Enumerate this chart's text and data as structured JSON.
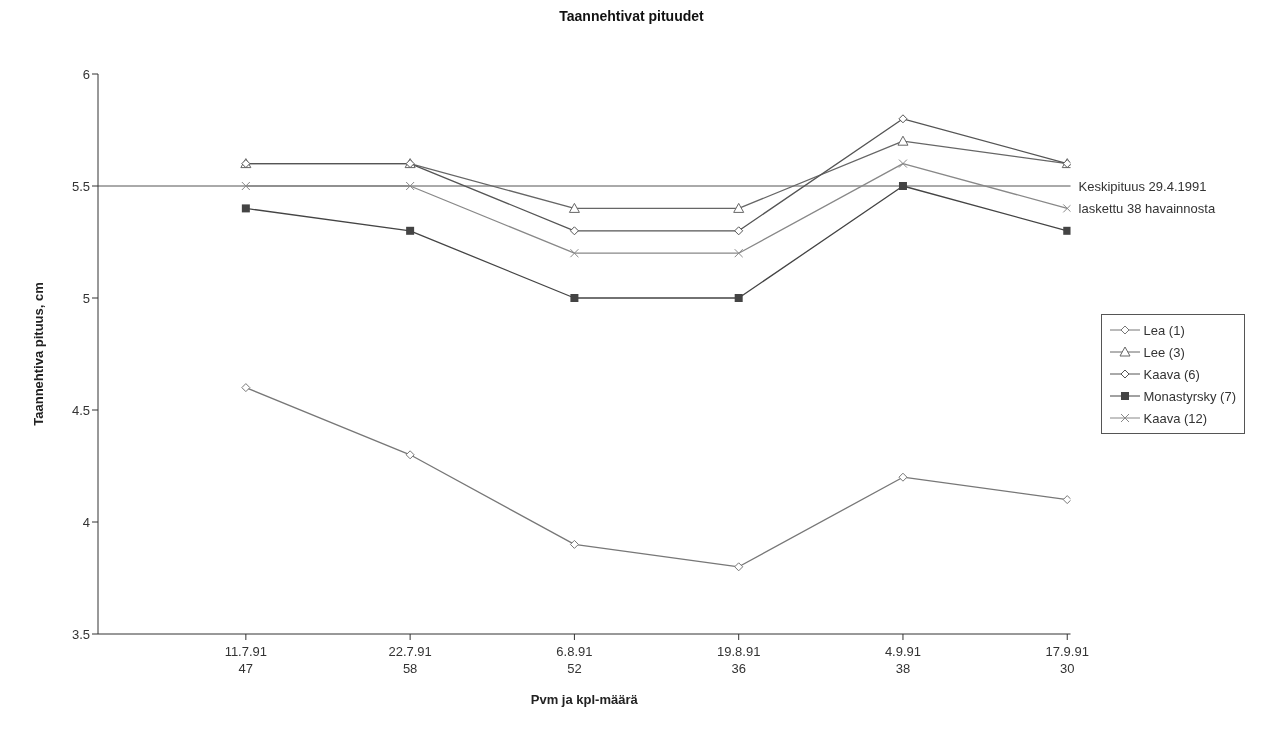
{
  "chart_data": {
    "type": "line",
    "title": "Taannehtivat pituudet",
    "xlabel": "Pvm ja kpl-määrä",
    "ylabel": "Taannehtiva pituus, cm",
    "categories": [
      "11.7.91\n47",
      "22.7.91\n58",
      "6.8.91\n52",
      "19.8.91\n36",
      "4.9.91\n38",
      "17.9.91\n30"
    ],
    "series": [
      {
        "name": "Lea (1)",
        "color": "#777777",
        "marker": "diamond",
        "values": [
          4.6,
          4.3,
          3.9,
          3.8,
          4.2,
          4.1
        ]
      },
      {
        "name": "Lee (3)",
        "color": "#666666",
        "marker": "triangle",
        "values": [
          5.6,
          5.6,
          5.4,
          5.4,
          5.7,
          5.6
        ]
      },
      {
        "name": "Kaava (6)",
        "color": "#555555",
        "marker": "diamond",
        "values": [
          5.6,
          5.6,
          5.3,
          5.3,
          5.8,
          5.6
        ]
      },
      {
        "name": "Monastyrsky (7)",
        "color": "#444444",
        "marker": "square",
        "values": [
          5.4,
          5.3,
          5.0,
          5.0,
          5.5,
          5.3
        ]
      },
      {
        "name": "Kaava (12)",
        "color": "#888888",
        "marker": "cross",
        "values": [
          5.5,
          5.5,
          5.2,
          5.2,
          5.6,
          5.4
        ]
      }
    ],
    "ylim": [
      3.5,
      6
    ],
    "yticks": [
      3.5,
      4,
      4.5,
      5,
      5.5,
      6
    ],
    "grid": false,
    "legend": "right",
    "ref_lines": [
      {
        "axis": "y",
        "value": 5.5,
        "label": "Keskipituus 29.4.1991\nlaskettu 38 havainnosta",
        "color": "#555555"
      }
    ]
  }
}
